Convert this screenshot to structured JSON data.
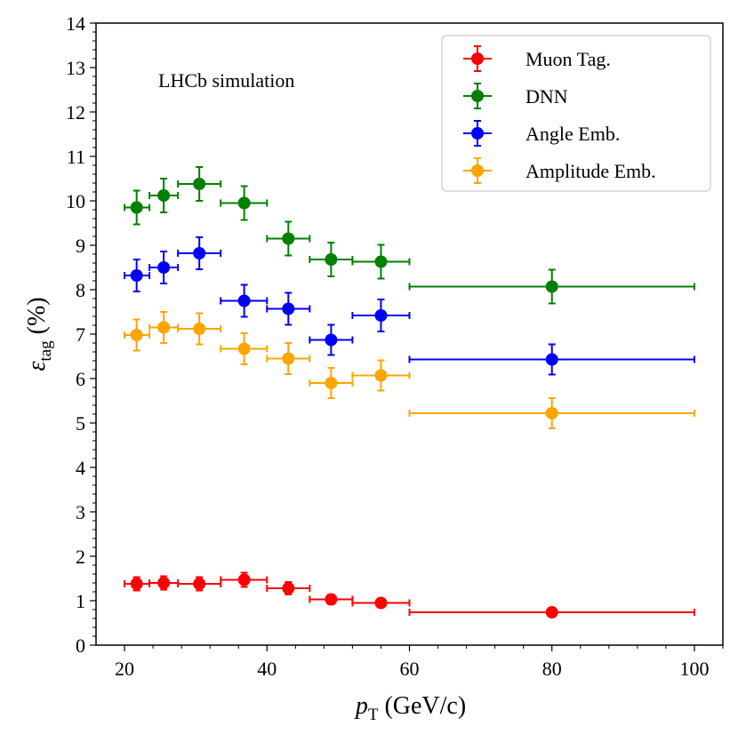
{
  "chart_data": {
    "type": "scatter",
    "title": "",
    "xlabel": "p_T (GeV/c)",
    "xlabel_main": "p",
    "xlabel_sub": "T",
    "xlabel_rest": " (GeV/c)",
    "ylabel": "ε_tag (%)",
    "ylabel_main": "ε",
    "ylabel_sub": "tag",
    "ylabel_rest": " (%)",
    "annotation": "LHCb simulation",
    "xlim": [
      16,
      104
    ],
    "ylim": [
      0,
      14
    ],
    "xticks": [
      20,
      40,
      60,
      80,
      100
    ],
    "yticks": [
      0,
      1,
      2,
      3,
      4,
      5,
      6,
      7,
      8,
      9,
      10,
      11,
      12,
      13,
      14
    ],
    "legend_position": "top-right",
    "bins": [
      {
        "x": 21.7,
        "lo": 20,
        "hi": 23.5
      },
      {
        "x": 25.5,
        "lo": 23.5,
        "hi": 27.5
      },
      {
        "x": 30.5,
        "lo": 27.5,
        "hi": 33.5
      },
      {
        "x": 36.8,
        "lo": 33.5,
        "hi": 40
      },
      {
        "x": 43,
        "lo": 40,
        "hi": 46
      },
      {
        "x": 49,
        "lo": 46,
        "hi": 52
      },
      {
        "x": 56,
        "lo": 52,
        "hi": 60
      },
      {
        "x": 80,
        "lo": 60,
        "hi": 100
      }
    ],
    "series": [
      {
        "name": "Muon Tag.",
        "color": "#ff0000",
        "values": [
          1.38,
          1.4,
          1.38,
          1.47,
          1.28,
          1.03,
          0.95,
          0.74
        ],
        "errors": [
          0.15,
          0.15,
          0.15,
          0.16,
          0.14,
          0.11,
          0.1,
          0.08
        ]
      },
      {
        "name": "DNN",
        "color": "#008000",
        "values": [
          9.85,
          10.12,
          10.38,
          9.95,
          9.15,
          8.68,
          8.63,
          8.07
        ],
        "errors": [
          0.38,
          0.38,
          0.38,
          0.38,
          0.38,
          0.38,
          0.38,
          0.38
        ]
      },
      {
        "name": "Angle Emb.",
        "color": "#0000ff",
        "values": [
          8.32,
          8.5,
          8.82,
          7.75,
          7.57,
          6.87,
          7.42,
          6.43
        ],
        "errors": [
          0.36,
          0.36,
          0.36,
          0.36,
          0.36,
          0.34,
          0.36,
          0.34
        ]
      },
      {
        "name": "Amplitude Emb.",
        "color": "#ffa500",
        "values": [
          6.98,
          7.15,
          7.12,
          6.67,
          6.45,
          5.9,
          6.07,
          5.22
        ],
        "errors": [
          0.35,
          0.35,
          0.35,
          0.35,
          0.35,
          0.34,
          0.34,
          0.34
        ]
      }
    ]
  }
}
